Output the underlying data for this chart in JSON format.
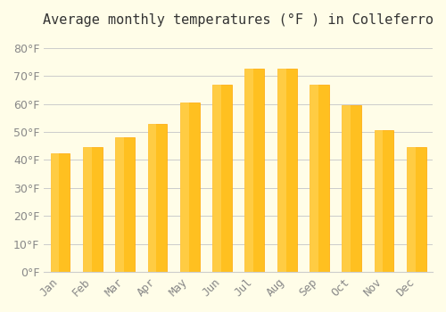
{
  "title": "Average monthly temperatures (°F ) in Colleferro",
  "months": [
    "Jan",
    "Feb",
    "Mar",
    "Apr",
    "May",
    "Jun",
    "Jul",
    "Aug",
    "Sep",
    "Oct",
    "Nov",
    "Dec"
  ],
  "values": [
    42.5,
    44.5,
    48,
    53,
    60.5,
    67,
    72.5,
    72.5,
    67,
    59.5,
    50.5,
    44.5
  ],
  "bar_color": "#FFC020",
  "bar_edge_color": "#FFA500",
  "background_color": "#FFFDE8",
  "grid_color": "#CCCCCC",
  "text_color": "#888888",
  "ylim": [
    0,
    85
  ],
  "yticks": [
    0,
    10,
    20,
    30,
    40,
    50,
    60,
    70,
    80
  ],
  "title_fontsize": 11,
  "tick_fontsize": 9
}
